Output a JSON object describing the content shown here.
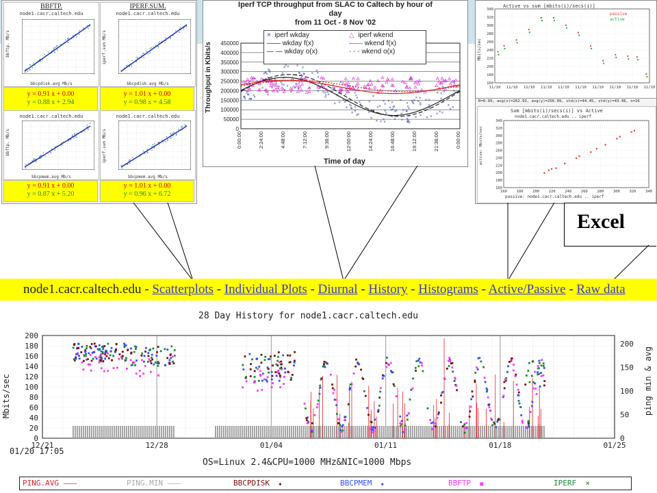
{
  "colors": {
    "band": "#cfe3ec",
    "nav_bg": "#ffff00",
    "link": "#3a3acc",
    "eq_red": "#d00000",
    "eq_green": "#228b22",
    "ping_avg": "#e8222a",
    "ping_min": "#aaaaaa",
    "bbcpdisk": "#7a0f0f",
    "bbcpmem": "#3050ff",
    "bbftp": "#ff33ff",
    "iperf": "#1a8a3a"
  },
  "scatter": {
    "cells": [
      {
        "title": "BBFTP.",
        "host": "node1.cacr.caltech.edu",
        "ylabel": "bbftp. Mb/s",
        "xlabel": "bbcpdisk.avg Mb/s",
        "ticks": "020406080100200",
        "yticks": [
          "160",
          "140",
          "120",
          "100",
          "80",
          "60",
          "40",
          "20",
          "0"
        ]
      },
      {
        "title": "IPERF.SUM.",
        "host": "node1.cacr.caltech.edu",
        "ylabel": "iperf.sum Mb/s",
        "xlabel": "bbcpdisk.avg Mb/s",
        "ticks": "020406080100200",
        "yticks": [
          "160",
          "140",
          "120",
          "100",
          "80",
          "60",
          "40",
          "20",
          "0"
        ]
      },
      {
        "title": "",
        "host": "node1.cacr.caltech.edu",
        "ylabel": "bbftp. Mb/s",
        "xlabel": "bbcpmem.avg Mb/s",
        "ticks": "020406080100200",
        "yticks": [
          "160",
          "140",
          "120",
          "100",
          "80",
          "60",
          "40",
          "20",
          "0"
        ]
      },
      {
        "title": "",
        "host": "node1.cacr.caltech.edu",
        "ylabel": "iperf.sum Mb/s",
        "xlabel": "bbcpmem.avg Mb/s",
        "ticks": "020406080100200",
        "yticks": [
          "160",
          "140",
          "120",
          "100",
          "80",
          "60",
          "40",
          "20",
          "0"
        ]
      }
    ],
    "equations": [
      {
        "red": "y = 0.91 x + 0.00",
        "green": "y = 0.88 x + 2.94"
      },
      {
        "red": "y = 1.01 x + 0.00",
        "green": "y = 0.98 x + 4.58"
      },
      {
        "red": "y = 0.91 x + 0.00",
        "green": "y = 0.87 x + 5.20"
      },
      {
        "red": "y = 1.01 x + 0.00",
        "green": "y = 0.96 x + 6.72"
      }
    ]
  },
  "excel_chart": {
    "title_lines": [
      "Iperf TCP throughput from SLAC to Caltech by hour of",
      "day",
      "from 11 Oct - 8 Nov '02"
    ],
    "ylabel": "Throughput in Kbits/s",
    "xlabel": "Time of day",
    "legend": [
      "iperf wkday",
      "iperf wkend",
      "wkday f(x)",
      "wkend f(x)",
      "wkday o(x)",
      "wkend o(x)"
    ]
  },
  "active_chart": {
    "top_title": "Active vs sum [mbits(i)/secs(i)]",
    "top_ylabel": "Mbits/sec",
    "top_legend": [
      "passive",
      "active"
    ],
    "top_xticks": [
      "11/10",
      "11/10",
      "11/10",
      "11/10",
      "11/10",
      "11/10",
      "11/10",
      "11/10",
      "11/10",
      "11/10"
    ],
    "top_yticks": [
      "340",
      "320",
      "300",
      "280",
      "260",
      "240",
      "220",
      "200",
      "180",
      "160"
    ],
    "stats": "R=0.99, avg(x)=262.93, avg(y)=256.09, std(x)=44.45, std(y)=43.48, n=16",
    "bottom_title": "Sum [mbits(i)/secs(i)] vs Active",
    "bottom_host": "node1.cacr.caltech.edu .. iperf",
    "bottom_ylabel": "active: Mbits/sec",
    "bottom_xlabel": "passive: node1.cacr.caltech.edu .. iperf",
    "bottom_xticks": [
      "160",
      "180",
      "200",
      "220",
      "240",
      "260",
      "280",
      "300",
      "320",
      "340"
    ],
    "bottom_yticks": [
      "340",
      "320",
      "300",
      "280",
      "260",
      "240",
      "220",
      "200",
      "180",
      "160"
    ]
  },
  "callout": {
    "label": "Excel"
  },
  "nav": {
    "host": "node1.cacr.caltech.edu",
    "sep": " - ",
    "links": [
      "Scatterplots",
      "Individual Plots",
      "Diurnal",
      "History",
      "Histograms",
      "Active/Passive",
      "Raw data"
    ]
  },
  "history": {
    "title": "28 Day History for node1.cacr.caltech.edu",
    "ylabel": "Mbits/sec",
    "y2label": "ping min & avg",
    "yticks": [
      "200",
      "180",
      "160",
      "140",
      "120",
      "100",
      "80",
      "60",
      "40",
      "20",
      "0"
    ],
    "y2ticks": [
      "200",
      "150",
      "100",
      "50",
      "0"
    ],
    "xticks": [
      "12/21",
      "12/28",
      "01/04",
      "01/11",
      "01/18",
      "01/25"
    ],
    "timestamp": "01/20 17:05",
    "footer": "OS=Linux 2.4&CPU=1000 MHz&NIC=1000 Mbps",
    "legend": [
      {
        "label": "PING.AVG",
        "sym": "———"
      },
      {
        "label": "PING.MIN",
        "sym": "———"
      },
      {
        "label": "BBCPDISK",
        "sym": "◆"
      },
      {
        "label": "BBCPMEM",
        "sym": "◆"
      },
      {
        "label": "BBFTP",
        "sym": "■"
      },
      {
        "label": "IPERF",
        "sym": "×"
      }
    ]
  }
}
